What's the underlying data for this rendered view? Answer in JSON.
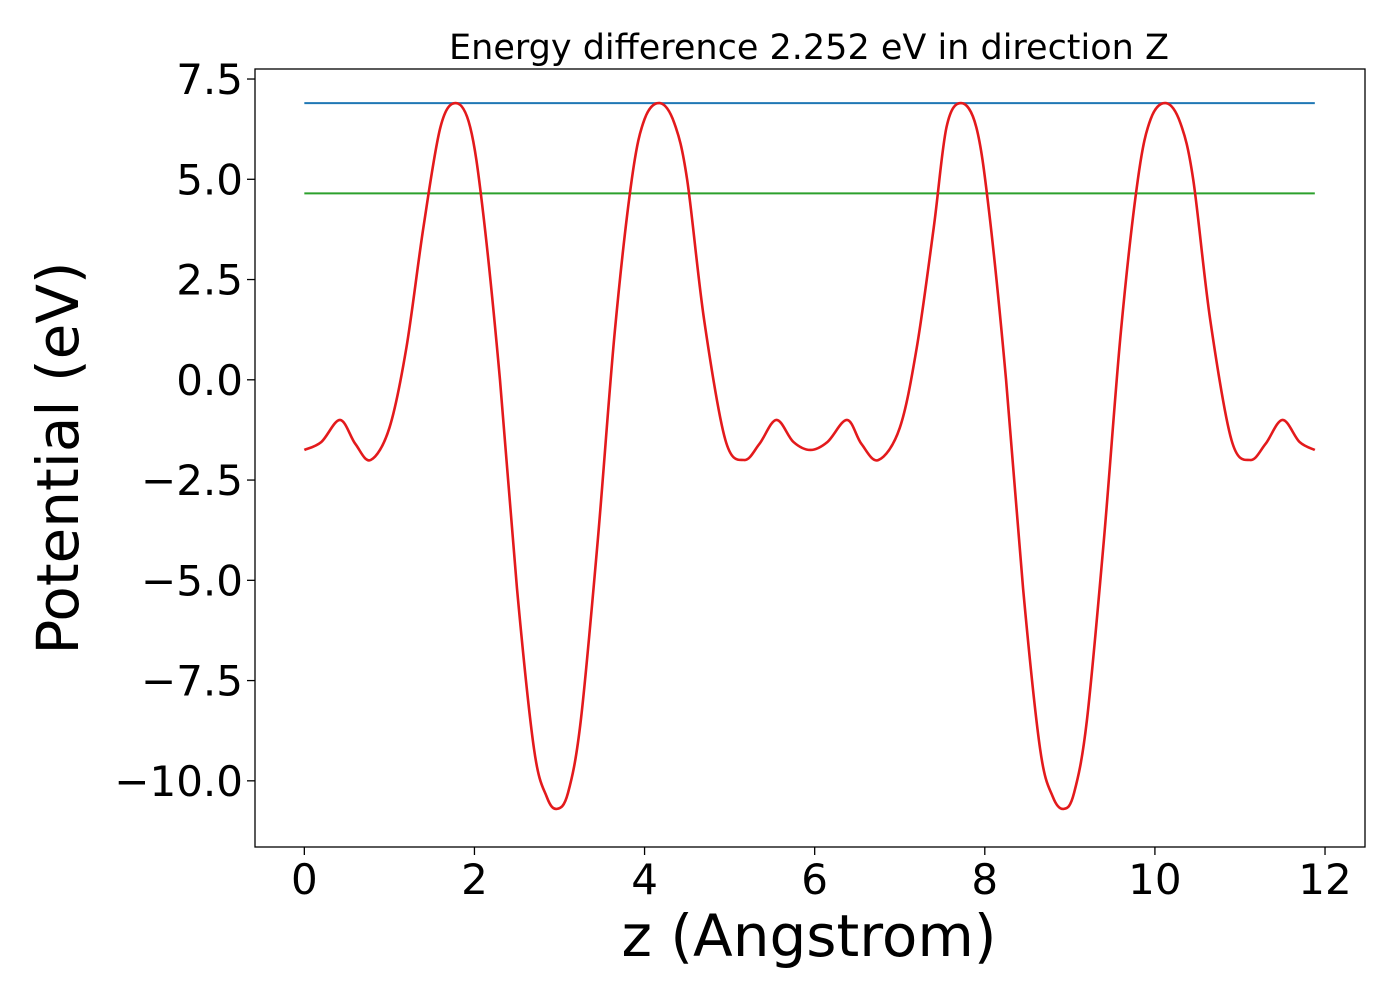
{
  "chart_data": {
    "type": "line",
    "title": "Energy difference 2.252 eV in direction Z",
    "xlabel": "z (Angstrom)",
    "ylabel": "Potential (eV)",
    "xlim": [
      -0.58,
      12.47
    ],
    "ylim": [
      -11.65,
      7.75
    ],
    "xticks": [
      0,
      2,
      4,
      6,
      8,
      10,
      12
    ],
    "xtick_labels": [
      "0",
      "2",
      "4",
      "6",
      "8",
      "10",
      "12"
    ],
    "yticks": [
      7.5,
      5.0,
      2.5,
      0.0,
      -2.5,
      -5.0,
      -7.5,
      -10.0
    ],
    "ytick_labels": [
      "7.5",
      "5.0",
      "2.5",
      "0.0",
      "−2.5",
      "−5.0",
      "−7.5",
      "−10.0"
    ],
    "grid": false,
    "series": [
      {
        "color": "#1f77b4",
        "x": [
          0,
          11.88
        ],
        "y": [
          6.9,
          6.9
        ]
      },
      {
        "color": "#2ca02c",
        "x": [
          0,
          11.88
        ],
        "y": [
          4.65,
          4.65
        ]
      },
      {
        "color": "#e31a1c",
        "x": [
          0.0,
          0.2,
          0.42,
          0.6,
          0.78,
          1.0,
          1.2,
          1.4,
          1.6,
          1.78,
          1.95,
          2.1,
          2.3,
          2.5,
          2.7,
          2.85,
          2.97,
          3.1,
          3.25,
          3.45,
          3.65,
          3.85,
          4.0,
          4.18,
          4.35,
          4.5,
          4.7,
          4.95,
          5.17,
          5.35,
          5.55,
          5.75,
          5.95,
          6.15,
          6.38,
          6.55,
          6.75,
          7.0,
          7.2,
          7.4,
          7.55,
          7.72,
          7.9,
          8.05,
          8.25,
          8.45,
          8.65,
          8.8,
          8.93,
          9.05,
          9.2,
          9.4,
          9.6,
          9.8,
          9.95,
          10.13,
          10.3,
          10.45,
          10.65,
          10.9,
          11.12,
          11.3,
          11.5,
          11.7,
          11.88
        ],
        "y": [
          -1.75,
          -1.55,
          -1.0,
          -1.6,
          -2.0,
          -1.2,
          0.8,
          3.8,
          6.3,
          6.9,
          6.3,
          4.2,
          0.0,
          -5.2,
          -9.2,
          -10.4,
          -10.7,
          -10.3,
          -8.5,
          -4.0,
          1.2,
          5.0,
          6.5,
          6.9,
          6.4,
          5.0,
          1.5,
          -1.5,
          -2.0,
          -1.6,
          -1.0,
          -1.55,
          -1.75,
          -1.55,
          -1.0,
          -1.6,
          -2.0,
          -1.2,
          0.8,
          3.8,
          6.3,
          6.9,
          6.3,
          4.2,
          0.0,
          -5.2,
          -9.2,
          -10.4,
          -10.7,
          -10.3,
          -8.5,
          -4.0,
          1.2,
          5.0,
          6.5,
          6.9,
          6.4,
          5.0,
          1.5,
          -1.5,
          -2.0,
          -1.6,
          -1.0,
          -1.55,
          -1.75
        ]
      }
    ]
  }
}
